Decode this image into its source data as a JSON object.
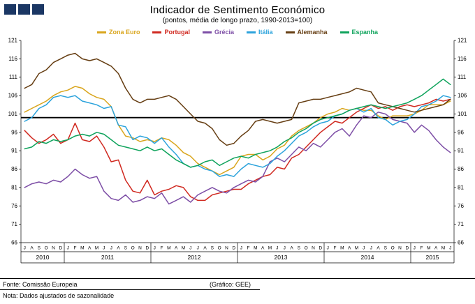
{
  "header": {
    "title": "Indicador de Sentimento Económico",
    "subtitle": "(pontos, média de longo prazo, 1990-2013=100)"
  },
  "logo": {
    "color": "#1B3764",
    "squares": 3
  },
  "footer": {
    "fonte": "Fonte: Comissão Europeia",
    "grafico": "(Gráfico: GEE)",
    "nota": "Nota: Dados ajustados de sazonalidade"
  },
  "chart_data": {
    "type": "line",
    "title": "Indicador de Sentimento Económico",
    "subtitle": "(pontos, média de longo prazo, 1990-2013=100)",
    "ylim": [
      66,
      121
    ],
    "ytick_step": 5,
    "reference_line": 100,
    "grid": false,
    "legend_position": "top",
    "months": [
      "J",
      "A",
      "S",
      "O",
      "N",
      "D",
      "J",
      "F",
      "M",
      "A",
      "M",
      "J",
      "J",
      "A",
      "S",
      "O",
      "N",
      "D",
      "J",
      "F",
      "M",
      "A",
      "M",
      "J",
      "J",
      "A",
      "S",
      "O",
      "N",
      "D",
      "J",
      "F",
      "M",
      "A",
      "M",
      "J",
      "J",
      "A",
      "S",
      "O",
      "N",
      "D",
      "J",
      "F",
      "M",
      "A",
      "M",
      "J",
      "J",
      "A",
      "S",
      "O",
      "N",
      "D",
      "J",
      "F",
      "M",
      "A",
      "M",
      "J"
    ],
    "years": [
      {
        "label": "2010",
        "span": 6
      },
      {
        "label": "2011",
        "span": 12
      },
      {
        "label": "2012",
        "span": 12
      },
      {
        "label": "2013",
        "span": 12
      },
      {
        "label": "2014",
        "span": 12
      },
      {
        "label": "2015",
        "span": 6
      }
    ],
    "series": [
      {
        "name": "Zona Euro",
        "color": "#D9A51C",
        "values": [
          101.5,
          102.5,
          103.5,
          104.5,
          106,
          107,
          107.5,
          108.5,
          108,
          106.5,
          105.5,
          105,
          103,
          98,
          95,
          94.5,
          93.5,
          94,
          93.5,
          94.5,
          94,
          92.5,
          90.5,
          89.5,
          87.5,
          86.5,
          85.5,
          84.5,
          85.5,
          86.5,
          89.5,
          90,
          90,
          88.5,
          89.5,
          91.5,
          92.5,
          95,
          96.5,
          97.5,
          98.5,
          100,
          101,
          101.5,
          102.5,
          102,
          102.5,
          102,
          102,
          100.5,
          99.5,
          100.5,
          100.5,
          100.5,
          101,
          102,
          103.5,
          103.5,
          103.5,
          104.5
        ]
      },
      {
        "name": "Portugal",
        "color": "#D02920",
        "values": [
          96.5,
          94.5,
          93,
          94,
          95.5,
          93,
          94,
          98.5,
          94,
          93.5,
          95,
          92,
          88,
          88.5,
          83,
          80,
          79.5,
          83,
          79,
          80,
          80.5,
          81.5,
          81,
          78.5,
          77.5,
          77.5,
          79,
          79.5,
          80,
          80.5,
          80.5,
          82,
          83,
          84,
          84.5,
          86.5,
          86,
          89,
          90,
          92,
          94,
          96,
          97.5,
          99,
          98.5,
          100,
          101.5,
          102.5,
          103.5,
          102.5,
          103,
          102,
          103,
          103.5,
          103,
          103.5,
          104,
          105,
          104.5,
          105
        ]
      },
      {
        "name": "Grécia",
        "color": "#7D4EA6",
        "values": [
          81,
          82,
          82.5,
          82,
          83,
          82.5,
          84,
          86,
          84.5,
          83.5,
          84,
          80,
          78,
          77.5,
          79,
          77,
          77.5,
          78.5,
          78,
          79.5,
          76.5,
          77.5,
          78.5,
          77,
          79,
          80,
          81,
          80,
          79.5,
          81,
          82,
          83,
          82.5,
          84,
          88,
          89,
          88,
          90,
          92,
          91,
          93,
          92,
          94,
          96,
          97,
          95,
          98,
          100.5,
          100,
          101.5,
          101,
          99.5,
          99,
          98.5,
          96,
          98,
          96.5,
          94,
          92,
          90.5
        ]
      },
      {
        "name": "Itália",
        "color": "#2CA3DC",
        "values": [
          99,
          100,
          102.5,
          103.5,
          105.5,
          106,
          105.5,
          106,
          104.5,
          104,
          103.5,
          102.5,
          103,
          98,
          97.5,
          94,
          95,
          94.5,
          93,
          94.5,
          92,
          90,
          87.5,
          86.5,
          87,
          86,
          85.5,
          84,
          84.5,
          84,
          86,
          87.5,
          87,
          86.5,
          87.5,
          89.5,
          91,
          93,
          95,
          96,
          97.5,
          98.5,
          99,
          100.5,
          101,
          102,
          102.5,
          101.5,
          102.5,
          100,
          99.5,
          98,
          99,
          99.5,
          101,
          103,
          103.5,
          104.5,
          106,
          105.5
        ]
      },
      {
        "name": "Alemanha",
        "color": "#663E13",
        "values": [
          108,
          109,
          112,
          113,
          115,
          116,
          117,
          117.5,
          116,
          115.5,
          116,
          115,
          114,
          112,
          108,
          105,
          104,
          105,
          105,
          105.5,
          106,
          105,
          103,
          101,
          99,
          98.5,
          97,
          94,
          92.5,
          93,
          95,
          96.5,
          99,
          99.5,
          99,
          98.5,
          99,
          99.5,
          104,
          104.5,
          105,
          105,
          105.5,
          106,
          106.5,
          107,
          108,
          107.5,
          107,
          104,
          103.5,
          103,
          102.5,
          102,
          101.5,
          102,
          102.5,
          103,
          103.5,
          105
        ]
      },
      {
        "name": "Espanha",
        "color": "#0FA35C",
        "values": [
          91.5,
          92,
          93.5,
          93,
          94,
          93.5,
          94,
          95,
          95.5,
          95,
          96,
          95.5,
          94,
          92.5,
          92,
          91.5,
          91,
          92,
          91,
          91.5,
          90,
          88.5,
          87.5,
          86.5,
          87,
          88,
          88.5,
          87,
          88,
          89,
          89.5,
          89,
          90,
          90.5,
          91,
          92,
          93.5,
          94.5,
          96,
          97,
          98.5,
          99.5,
          100,
          100.5,
          101,
          102,
          102.5,
          103,
          103.5,
          103,
          102.5,
          103,
          103.5,
          104,
          105,
          106,
          107.5,
          109,
          110.5,
          109
        ]
      }
    ]
  }
}
